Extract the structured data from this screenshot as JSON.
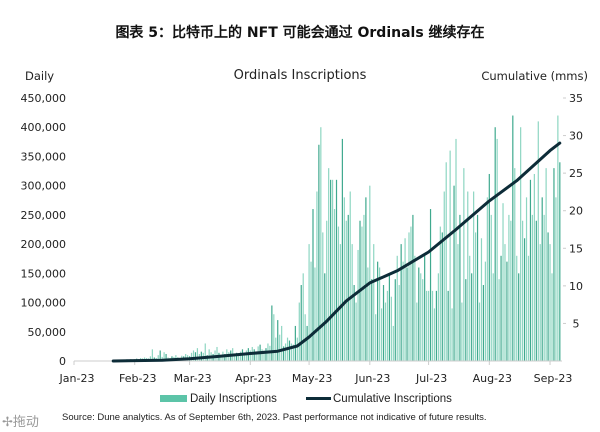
{
  "figure_title": "图表 5：比特币上的 NFT 可能会通过 Ordinals 继续存在",
  "source": "Source: Dune analytics. As of September 6th, 2023. Past performance not indicative of future results.",
  "watermark": "拖动",
  "colors": {
    "bars": "#5cc4a8",
    "line": "#0d2c38"
  },
  "chart_data": {
    "type": "bar",
    "title": "Ordinals Inscriptions",
    "ylabel": "Daily",
    "y2label": "Cumulative (mms)",
    "xlabel": "",
    "ylim": [
      0,
      450000
    ],
    "y2lim": [
      0,
      35
    ],
    "yticks": [
      "0",
      "50,000",
      "100,000",
      "150,000",
      "200,000",
      "250,000",
      "300,000",
      "350,000",
      "400,000",
      "450,000"
    ],
    "ytick_values": [
      0,
      50000,
      100000,
      150000,
      200000,
      250000,
      300000,
      350000,
      400000,
      450000
    ],
    "y2ticks": [
      "5",
      "10",
      "15",
      "20",
      "25",
      "30",
      "35"
    ],
    "y2tick_values": [
      5,
      10,
      15,
      20,
      25,
      30,
      35
    ],
    "xticks": [
      "Jan-23",
      "Feb-23",
      "Mar-23",
      "Apr-23",
      "May-23",
      "Jun-23",
      "Jul-23",
      "Aug-23",
      "Sep-23"
    ],
    "xtick_days": [
      0,
      31,
      59,
      90,
      120,
      151,
      181,
      212,
      243
    ],
    "legend": [
      "Daily Inscriptions",
      "Cumulative Inscriptions"
    ],
    "legend_position": "bottom",
    "grid": false,
    "daily_start_day": 20,
    "daily_unit": 1000,
    "daily_values": [
      0,
      0,
      1,
      1,
      2,
      1,
      2,
      3,
      2,
      3,
      2,
      3,
      4,
      3,
      5,
      4,
      6,
      5,
      4,
      8,
      20,
      6,
      5,
      10,
      18,
      7,
      15,
      12,
      6,
      5,
      8,
      7,
      10,
      6,
      5,
      9,
      8,
      12,
      10,
      8,
      14,
      18,
      15,
      22,
      12,
      16,
      14,
      30,
      10,
      20,
      15,
      12,
      18,
      24,
      14,
      10,
      16,
      12,
      20,
      15,
      18,
      22,
      12,
      14,
      10,
      16,
      20,
      14,
      18,
      22,
      18,
      24,
      20,
      16,
      25,
      28,
      20,
      18,
      22,
      30,
      26,
      95,
      80,
      40,
      70,
      45,
      60,
      25,
      30,
      40,
      35,
      30,
      28,
      60,
      40,
      100,
      130,
      150,
      80,
      60,
      200,
      170,
      260,
      160,
      290,
      370,
      400,
      220,
      150,
      240,
      330,
      310,
      310,
      260,
      310,
      230,
      200,
      380,
      280,
      240,
      250,
      290,
      200,
      130,
      100,
      190,
      240,
      230,
      250,
      280,
      160,
      300,
      140,
      200,
      80,
      170,
      160,
      90,
      130,
      100,
      120,
      150,
      110,
      60,
      140,
      180,
      130,
      200,
      170,
      210,
      160,
      220,
      230,
      250,
      180,
      100,
      160,
      150,
      140,
      180,
      120,
      120,
      260,
      120,
      90,
      120,
      150,
      230,
      220,
      290,
      340,
      120,
      360,
      90,
      300,
      380,
      200,
      250,
      100,
      330,
      140,
      290,
      180,
      150,
      290,
      220,
      250,
      100,
      210,
      130,
      170,
      280,
      320,
      250,
      150,
      400,
      380,
      140,
      180,
      270,
      200,
      170,
      250,
      240,
      420,
      330,
      180,
      150,
      400,
      240,
      210,
      280,
      180,
      310,
      250,
      320,
      240,
      410,
      200,
      280,
      250,
      330,
      220,
      200,
      150,
      330,
      280,
      420,
      340
    ],
    "cumulative": {
      "days": [
        20,
        45,
        59,
        73,
        90,
        104,
        114,
        120,
        129,
        139,
        151,
        165,
        181,
        195,
        212,
        226,
        243,
        248
      ],
      "values": [
        0,
        0.1,
        0.3,
        0.6,
        1.0,
        1.3,
        2.0,
        3.2,
        5.3,
        8.0,
        10.4,
        12.0,
        14.5,
        17.5,
        21.3,
        24.0,
        28.0,
        29.0
      ]
    }
  }
}
